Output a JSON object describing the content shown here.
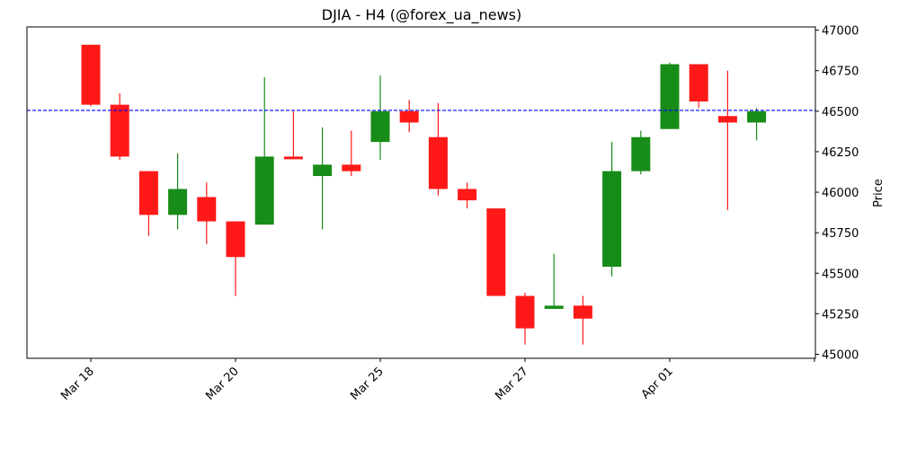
{
  "chart_data": {
    "type": "candlestick",
    "title": "DJIA - H4 (@forex_ua_news)",
    "xlabel": "",
    "ylabel": "Price",
    "ylim": [
      44975,
      47020
    ],
    "y_ticks": [
      45000,
      45250,
      45500,
      45750,
      46000,
      46250,
      46500,
      46750,
      47000
    ],
    "x_tick_labels": [
      {
        "index": 0,
        "label": "Mar 18"
      },
      {
        "index": 5,
        "label": "Mar 20"
      },
      {
        "index": 10,
        "label": "Mar 25"
      },
      {
        "index": 15,
        "label": "Mar 27"
      },
      {
        "index": 20,
        "label": "Apr 01"
      },
      {
        "index": 25,
        "label": ""
      }
    ],
    "grid": false,
    "reference_line": {
      "value": 46505,
      "style": "dashed",
      "color": "#0000ff"
    },
    "colors": {
      "up": "#008000",
      "down": "#ff0000"
    },
    "candles": [
      {
        "open": 46910,
        "high": 46910,
        "low": 46530,
        "close": 46540
      },
      {
        "open": 46540,
        "high": 46610,
        "low": 46200,
        "close": 46220
      },
      {
        "open": 46130,
        "high": 46130,
        "low": 45730,
        "close": 45860
      },
      {
        "open": 45860,
        "high": 46240,
        "low": 45770,
        "close": 46020
      },
      {
        "open": 45970,
        "high": 46060,
        "low": 45680,
        "close": 45820
      },
      {
        "open": 45820,
        "high": 45820,
        "low": 45360,
        "close": 45600
      },
      {
        "open": 45800,
        "high": 46710,
        "low": 45800,
        "close": 46220
      },
      {
        "open": 46220,
        "high": 46500,
        "low": 46210,
        "close": 46210
      },
      {
        "open": 46100,
        "high": 46400,
        "low": 45770,
        "close": 46170
      },
      {
        "open": 46170,
        "high": 46380,
        "low": 46100,
        "close": 46130
      },
      {
        "open": 46310,
        "high": 46720,
        "low": 46200,
        "close": 46500
      },
      {
        "open": 46500,
        "high": 46570,
        "low": 46370,
        "close": 46430
      },
      {
        "open": 46340,
        "high": 46550,
        "low": 45980,
        "close": 46020
      },
      {
        "open": 46020,
        "high": 46060,
        "low": 45900,
        "close": 45950
      },
      {
        "open": 45900,
        "high": 45900,
        "low": 45360,
        "close": 45360
      },
      {
        "open": 45360,
        "high": 45380,
        "low": 45060,
        "close": 45160
      },
      {
        "open": 45280,
        "high": 45620,
        "low": 45280,
        "close": 45300
      },
      {
        "open": 45300,
        "high": 45360,
        "low": 45060,
        "close": 45220
      },
      {
        "open": 45540,
        "high": 46310,
        "low": 45480,
        "close": 46130
      },
      {
        "open": 46130,
        "high": 46380,
        "low": 46110,
        "close": 46340
      },
      {
        "open": 46390,
        "high": 46800,
        "low": 46390,
        "close": 46790
      },
      {
        "open": 46790,
        "high": 46790,
        "low": 46520,
        "close": 46560
      },
      {
        "open": 46470,
        "high": 46750,
        "low": 45890,
        "close": 46430
      },
      {
        "open": 46430,
        "high": 46520,
        "low": 46320,
        "close": 46500
      }
    ]
  }
}
